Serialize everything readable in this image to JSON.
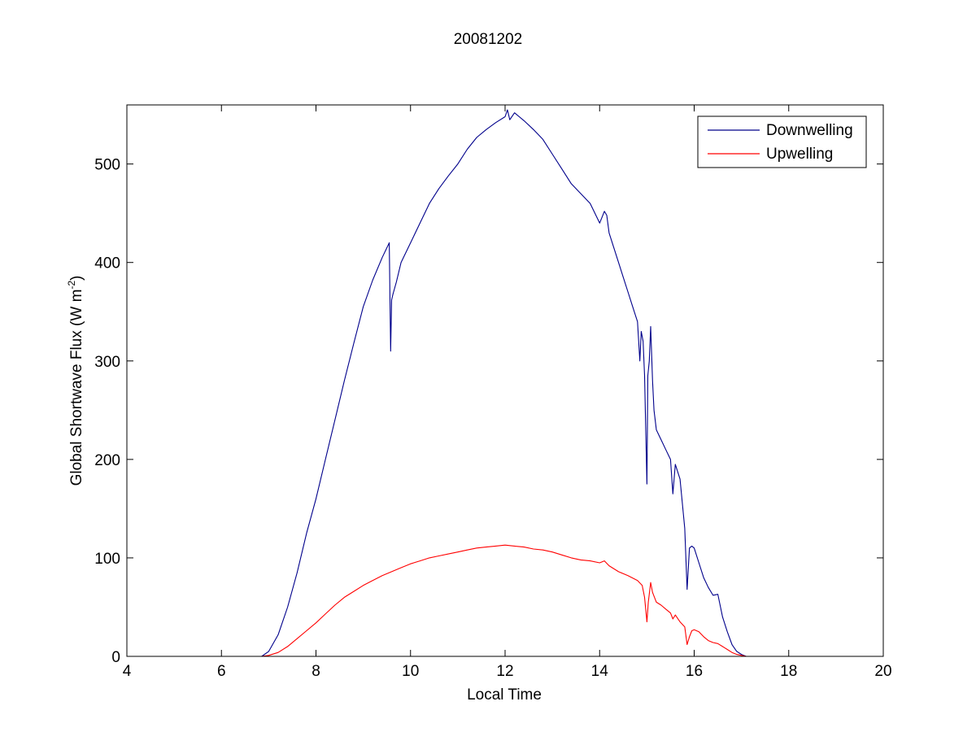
{
  "chart_data": {
    "type": "line",
    "title": "20081202",
    "xlabel": "Local Time",
    "ylabel": "Global Shortwave Flux (W m",
    "ylabel_superscript": "-2",
    "ylabel_suffix": ")",
    "xlim": [
      4,
      20
    ],
    "ylim": [
      0,
      560
    ],
    "xticks": [
      4,
      6,
      8,
      10,
      12,
      14,
      16,
      18,
      20
    ],
    "yticks": [
      0,
      100,
      200,
      300,
      400,
      500
    ],
    "grid": false,
    "legend_position": "top-right",
    "series": [
      {
        "name": "Downwelling",
        "color": "#00008b",
        "x": [
          6.85,
          7.0,
          7.2,
          7.4,
          7.6,
          7.8,
          8.0,
          8.2,
          8.4,
          8.6,
          8.8,
          9.0,
          9.2,
          9.4,
          9.55,
          9.58,
          9.6,
          9.63,
          9.7,
          9.8,
          10.0,
          10.2,
          10.4,
          10.6,
          10.8,
          11.0,
          11.2,
          11.4,
          11.6,
          11.8,
          12.0,
          12.05,
          12.1,
          12.2,
          12.4,
          12.6,
          12.8,
          13.0,
          13.2,
          13.4,
          13.6,
          13.8,
          14.0,
          14.1,
          14.15,
          14.2,
          14.3,
          14.4,
          14.5,
          14.6,
          14.7,
          14.8,
          14.85,
          14.88,
          14.92,
          14.95,
          15.0,
          15.02,
          15.05,
          15.08,
          15.12,
          15.15,
          15.2,
          15.3,
          15.4,
          15.5,
          15.55,
          15.6,
          15.7,
          15.8,
          15.85,
          15.9,
          15.95,
          16.0,
          16.1,
          16.2,
          16.3,
          16.4,
          16.5,
          16.6,
          16.7,
          16.8,
          16.9,
          17.0,
          17.1
        ],
        "values": [
          0,
          5,
          22,
          50,
          85,
          125,
          160,
          200,
          240,
          280,
          318,
          355,
          382,
          405,
          420,
          310,
          362,
          368,
          380,
          400,
          420,
          440,
          460,
          475,
          488,
          500,
          515,
          527,
          535,
          542,
          548,
          555,
          545,
          552,
          544,
          535,
          525,
          510,
          495,
          480,
          470,
          460,
          440,
          452,
          448,
          430,
          415,
          400,
          385,
          370,
          355,
          340,
          300,
          330,
          320,
          285,
          175,
          285,
          300,
          335,
          280,
          250,
          230,
          220,
          210,
          200,
          165,
          195,
          180,
          130,
          68,
          110,
          112,
          110,
          95,
          80,
          70,
          62,
          63,
          40,
          25,
          12,
          5,
          2,
          0
        ]
      },
      {
        "name": "Upwelling",
        "color": "#ff0000",
        "x": [
          6.85,
          7.0,
          7.2,
          7.4,
          7.6,
          7.8,
          8.0,
          8.2,
          8.4,
          8.6,
          8.8,
          9.0,
          9.2,
          9.4,
          9.6,
          9.8,
          10.0,
          10.2,
          10.4,
          10.6,
          10.8,
          11.0,
          11.2,
          11.4,
          11.6,
          11.8,
          12.0,
          12.2,
          12.4,
          12.6,
          12.8,
          13.0,
          13.2,
          13.4,
          13.6,
          13.8,
          14.0,
          14.1,
          14.2,
          14.4,
          14.6,
          14.8,
          14.9,
          14.95,
          15.0,
          15.03,
          15.08,
          15.12,
          15.2,
          15.3,
          15.4,
          15.5,
          15.55,
          15.6,
          15.7,
          15.8,
          15.85,
          15.9,
          15.95,
          16.0,
          16.1,
          16.2,
          16.3,
          16.4,
          16.5,
          16.6,
          16.7,
          16.8,
          16.9,
          17.0,
          17.1
        ],
        "values": [
          0,
          1,
          4,
          10,
          18,
          26,
          34,
          43,
          52,
          60,
          66,
          72,
          77,
          82,
          86,
          90,
          94,
          97,
          100,
          102,
          104,
          106,
          108,
          110,
          111,
          112,
          113,
          112,
          111,
          109,
          108,
          106,
          103,
          100,
          98,
          97,
          95,
          97,
          92,
          86,
          82,
          77,
          72,
          60,
          35,
          55,
          75,
          65,
          55,
          52,
          48,
          44,
          38,
          42,
          35,
          30,
          12,
          20,
          26,
          27,
          25,
          20,
          16,
          14,
          13,
          10,
          7,
          4,
          2,
          1,
          0
        ]
      }
    ]
  }
}
